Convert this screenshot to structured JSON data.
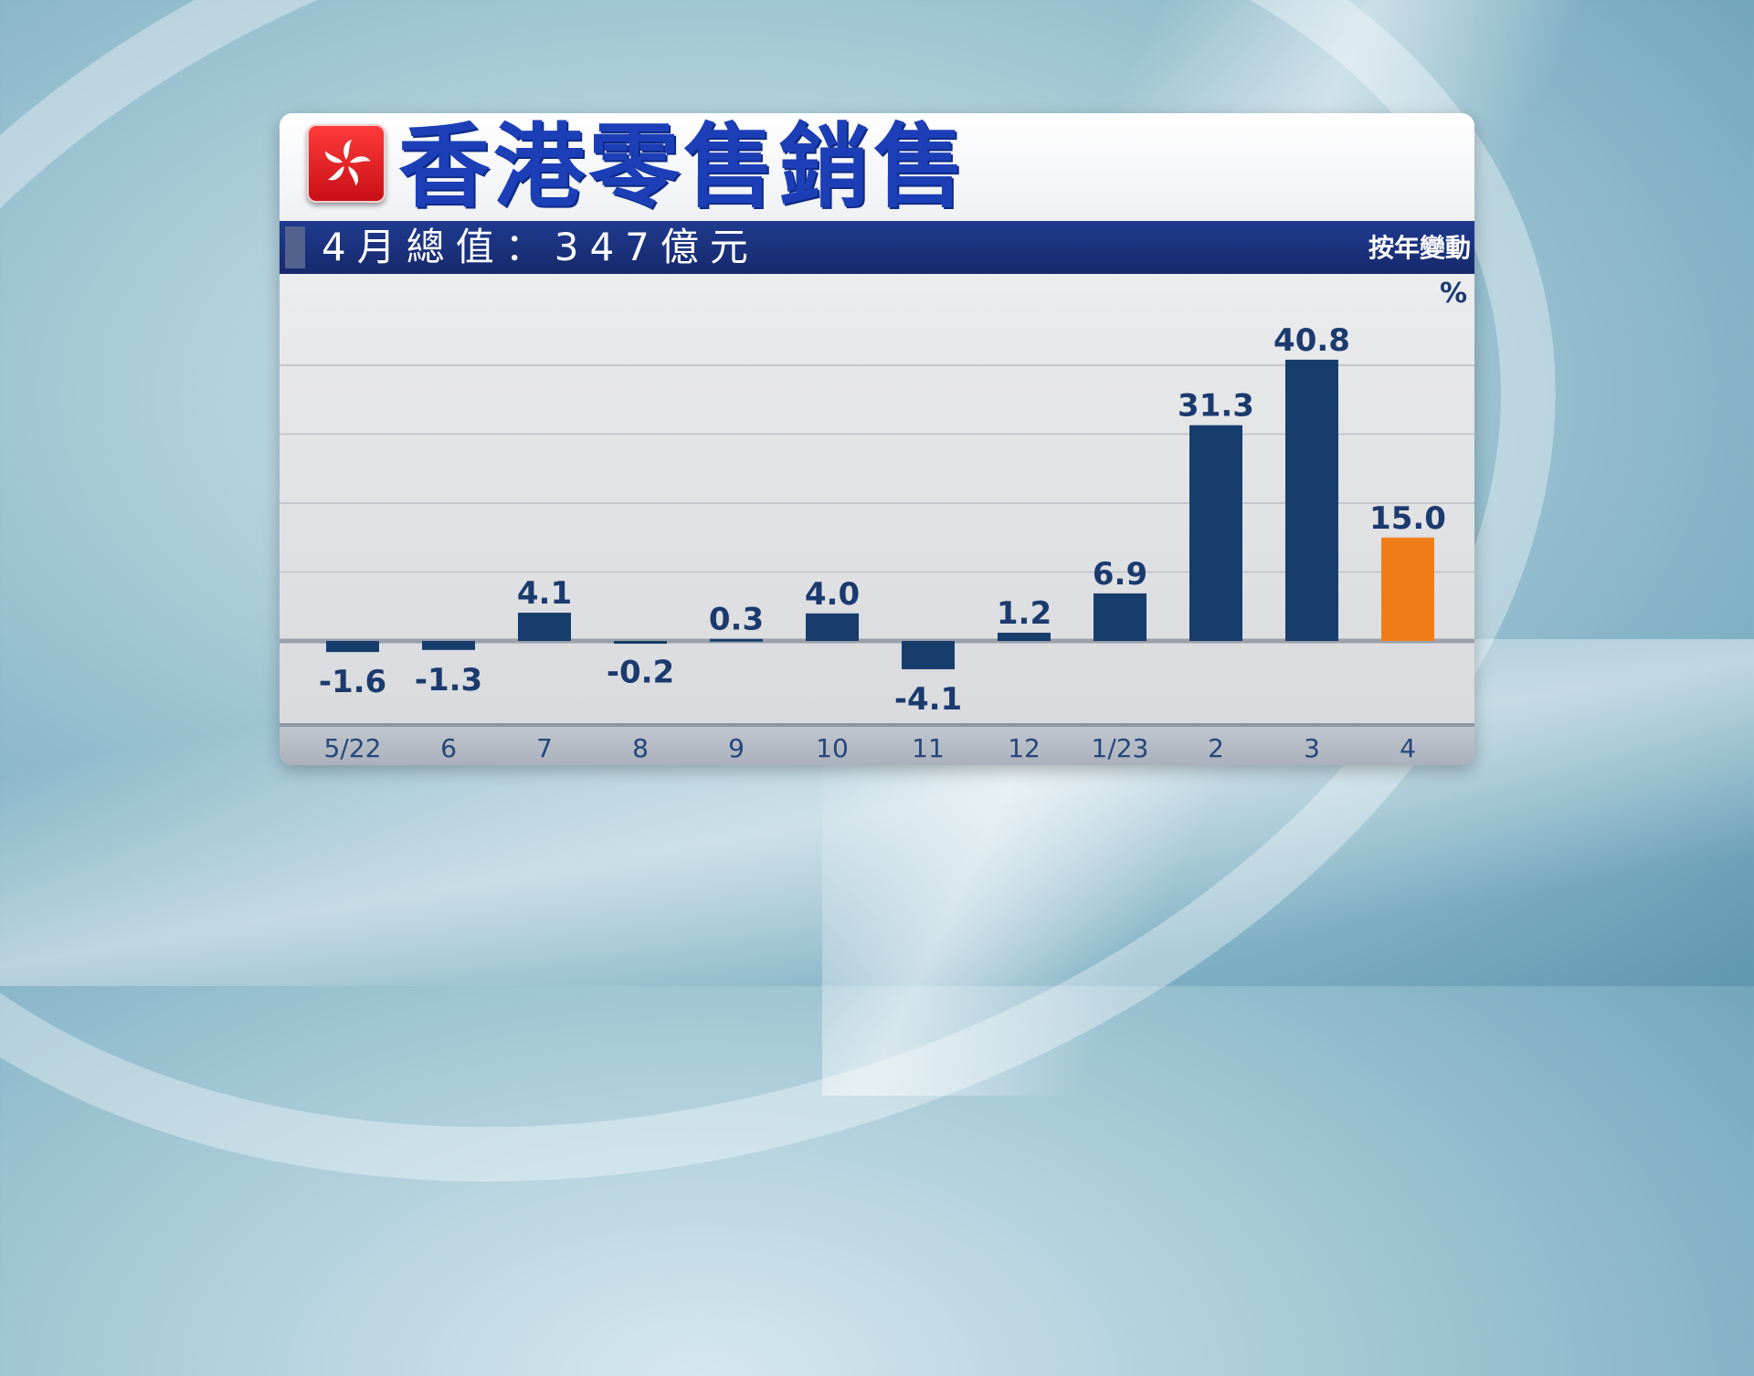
{
  "header": {
    "title": "香港零售銷售",
    "subtitle": "4月總值：347億元",
    "change_label": "按年變動",
    "unit": "%"
  },
  "colors": {
    "bar": "#163d6b",
    "highlight_bar": "#ef7d1a",
    "label": "#1b3a6e",
    "title": "#1c3fb8",
    "subtitle_bg": "#1f3a8f"
  },
  "chart_data": {
    "type": "bar",
    "categories": [
      "5/22",
      "6",
      "7",
      "8",
      "9",
      "10",
      "11",
      "12",
      "1/23",
      "2",
      "3",
      "4"
    ],
    "series": [
      {
        "values": [
          -1.6,
          -1.3,
          4.1,
          -0.2,
          0.3,
          4.0,
          -4.1,
          1.2,
          6.9,
          31.3,
          40.8,
          15.0
        ]
      }
    ],
    "value_labels": [
      "-1.6",
      "-1.3",
      "4.1",
      "-0.2",
      "0.3",
      "4.0",
      "-4.1",
      "1.2",
      "6.9",
      "31.3",
      "40.8",
      "15.0"
    ],
    "highlight_index": 11,
    "ylim": [
      -8,
      44
    ],
    "grid": true,
    "legend": "none"
  }
}
